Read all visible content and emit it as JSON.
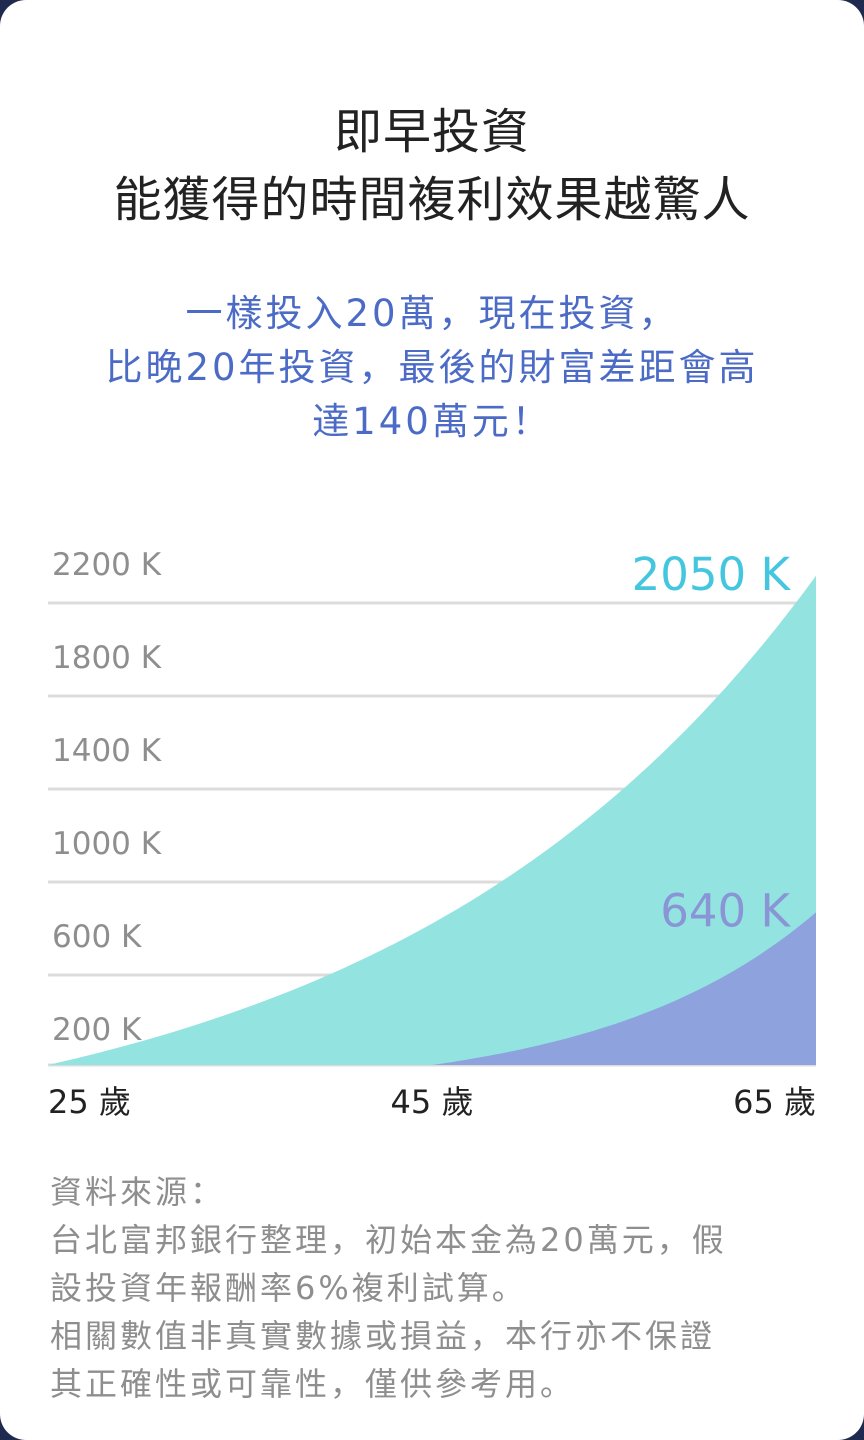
{
  "title": {
    "line1": "即早投資",
    "line2": "能獲得的時間複利效果越驚人"
  },
  "subtitle": {
    "line1": "一樣投入20萬，現在投資，",
    "line2": "比晚20年投資，最後的財富差距會高",
    "line3": "達140萬元！"
  },
  "chart_data": {
    "type": "area",
    "x_ticks": [
      {
        "age": 25,
        "label": "25 歲"
      },
      {
        "age": 45,
        "label": "45 歲"
      },
      {
        "age": 65,
        "label": "65 歲"
      }
    ],
    "xlim": [
      25,
      65
    ],
    "y_tick_labels": [
      "2200 K",
      "1800 K",
      "1400 K",
      "1000 K",
      "600 K",
      "200 K"
    ],
    "y_tick_values": [
      2200,
      1800,
      1400,
      1000,
      600,
      200
    ],
    "ylim": [
      0,
      2200
    ],
    "grid": true,
    "series": [
      {
        "start_age": 25,
        "end_value": 2050,
        "end_label": "2050 K",
        "color": "#93e3e1",
        "label_color": "#45c6df"
      },
      {
        "start_age": 45,
        "end_value": 640,
        "end_label": "640 K",
        "color": "#8ea2de",
        "label_color": "#8a95d6"
      }
    ]
  },
  "source": {
    "line1": "資料來源：",
    "line2": "台北富邦銀行整理，初始本金為20萬元，假",
    "line3": "設投資年報酬率6%複利試算。",
    "line4": "相關數值非真實數據或損益，本行亦不保證",
    "line5": "其正確性或可靠性，僅供參考用。"
  }
}
